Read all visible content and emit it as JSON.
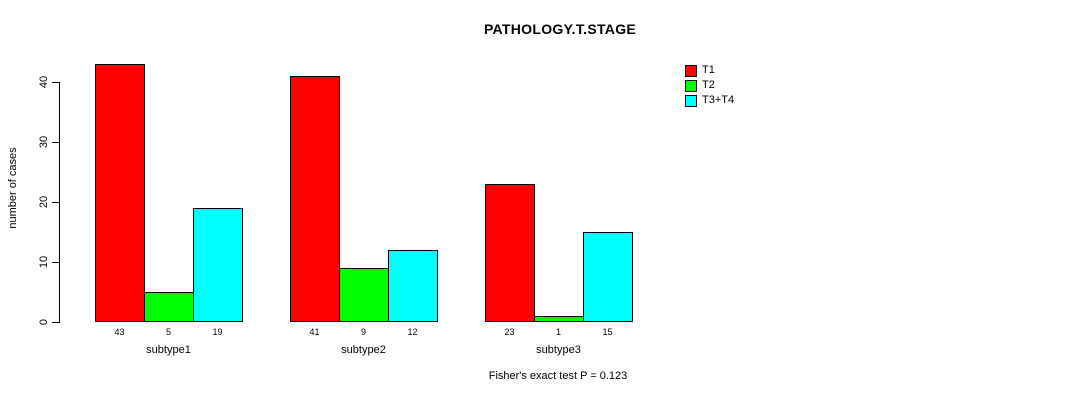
{
  "chart_data": {
    "type": "bar",
    "grouped": true,
    "title": "PATHOLOGY.T.STAGE",
    "xlabel": "",
    "ylabel": "number of cases",
    "categories": [
      "subtype1",
      "subtype2",
      "subtype3"
    ],
    "series": [
      {
        "name": "T1",
        "color": "#ff0000",
        "values": [
          43,
          41,
          23
        ]
      },
      {
        "name": "T2",
        "color": "#00ff00",
        "values": [
          5,
          9,
          1
        ]
      },
      {
        "name": "T3+T4",
        "color": "#00ffff",
        "values": [
          19,
          12,
          15
        ]
      }
    ],
    "bar_value_labels_shown": true,
    "yticks": [
      0,
      10,
      20,
      30,
      40
    ],
    "ylim": [
      0,
      44
    ],
    "grid": false,
    "legend_position": "top-right",
    "axis_color": "#000000",
    "background_color": "#ffffff",
    "annotation": "Fisher's exact test P = 0.123"
  }
}
